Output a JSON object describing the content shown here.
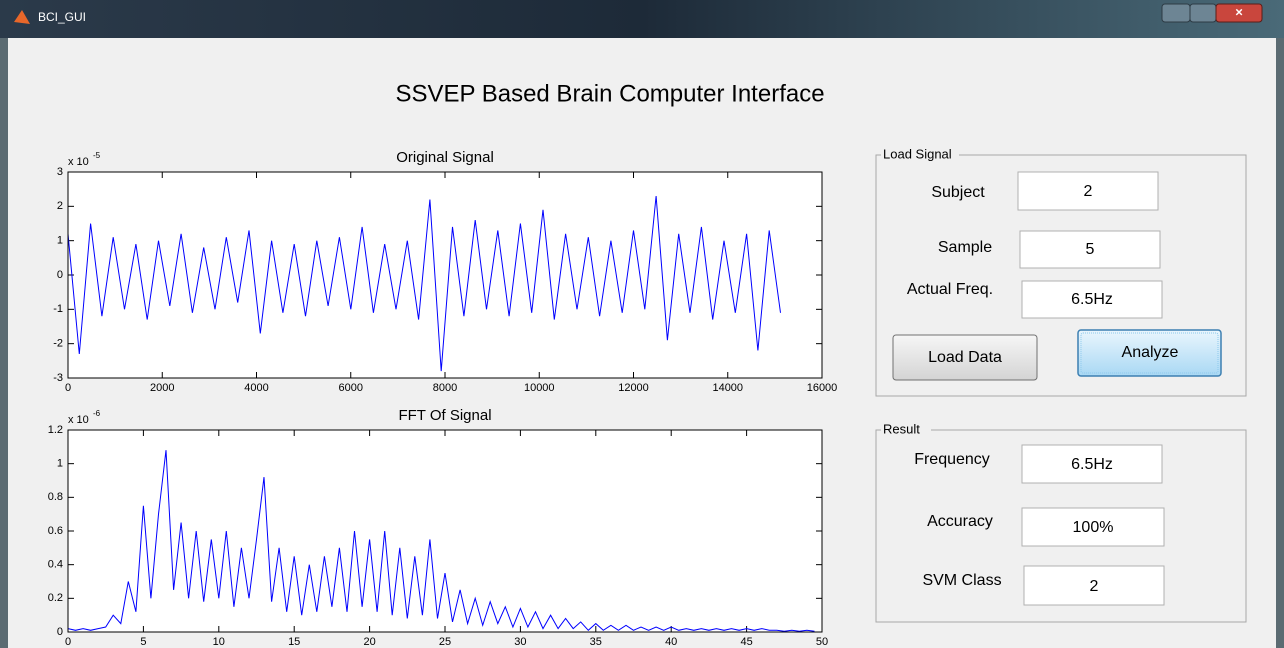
{
  "window": {
    "title": "BCI_GUI"
  },
  "heading": "SSVEP Based Brain Computer Interface",
  "chart_data": [
    {
      "type": "line",
      "title": "Original Signal",
      "y_scale": {
        "base": "x 10",
        "exponent": "-5"
      },
      "color": "#0000ff",
      "x": [
        0,
        240,
        480,
        720,
        960,
        1200,
        1440,
        1680,
        1920,
        2160,
        2400,
        2640,
        2880,
        3120,
        3360,
        3600,
        3840,
        4080,
        4320,
        4560,
        4800,
        5040,
        5280,
        5520,
        5760,
        6000,
        6240,
        6480,
        6720,
        6960,
        7200,
        7440,
        7680,
        7920,
        8160,
        8400,
        8640,
        8880,
        9120,
        9360,
        9600,
        9840,
        10080,
        10320,
        10560,
        10800,
        11040,
        11280,
        11520,
        11760,
        12000,
        12240,
        12480,
        12720,
        12960,
        13200,
        13440,
        13680,
        13920,
        14160,
        14400,
        14640,
        14880,
        15120
      ],
      "values": [
        1.2,
        -2.3,
        1.5,
        -1.2,
        1.1,
        -1.0,
        0.9,
        -1.3,
        1.0,
        -0.9,
        1.2,
        -1.1,
        0.8,
        -1.0,
        1.1,
        -0.8,
        1.3,
        -1.7,
        1.0,
        -1.1,
        0.9,
        -1.2,
        1.0,
        -0.9,
        1.1,
        -1.0,
        1.4,
        -1.1,
        0.9,
        -1.0,
        1.0,
        -1.3,
        2.2,
        -2.8,
        1.4,
        -1.2,
        1.6,
        -1.0,
        1.3,
        -1.2,
        1.5,
        -1.1,
        1.9,
        -1.3,
        1.2,
        -1.0,
        1.1,
        -1.2,
        1.0,
        -1.1,
        1.3,
        -1.0,
        2.3,
        -1.9,
        1.2,
        -1.1,
        1.4,
        -1.3,
        1.0,
        -1.1,
        1.2,
        -2.2,
        1.3,
        -1.1
      ],
      "xlim": [
        0,
        16000
      ],
      "xticks": [
        0,
        2000,
        4000,
        6000,
        8000,
        10000,
        12000,
        14000,
        16000
      ],
      "ylim": [
        -3,
        3
      ],
      "yticks": [
        -3,
        -2,
        -1,
        0,
        1,
        2,
        3
      ]
    },
    {
      "type": "line",
      "title": "FFT Of Signal",
      "y_scale": {
        "base": "x 10",
        "exponent": "-6"
      },
      "color": "#0000ff",
      "x": [
        0,
        0.5,
        1,
        1.5,
        2,
        2.5,
        3,
        3.5,
        4,
        4.5,
        5,
        5.5,
        6,
        6.5,
        7,
        7.5,
        8,
        8.5,
        9,
        9.5,
        10,
        10.5,
        11,
        11.5,
        12,
        12.5,
        13,
        13.5,
        14,
        14.5,
        15,
        15.5,
        16,
        16.5,
        17,
        17.5,
        18,
        18.5,
        19,
        19.5,
        20,
        20.5,
        21,
        21.5,
        22,
        22.5,
        23,
        23.5,
        24,
        24.5,
        25,
        25.5,
        26,
        26.5,
        27,
        27.5,
        28,
        28.5,
        29,
        29.5,
        30,
        30.5,
        31,
        31.5,
        32,
        32.5,
        33,
        33.5,
        34,
        34.5,
        35,
        35.5,
        36,
        36.5,
        37,
        37.5,
        38,
        38.5,
        39,
        39.5,
        40,
        40.5,
        41,
        41.5,
        42,
        42.5,
        43,
        43.5,
        44,
        44.5,
        45,
        45.5,
        46,
        46.5,
        47,
        47.5,
        48,
        48.5,
        49,
        49.5
      ],
      "values": [
        0.02,
        0.01,
        0.02,
        0.01,
        0.02,
        0.03,
        0.1,
        0.05,
        0.3,
        0.12,
        0.75,
        0.2,
        0.7,
        1.08,
        0.25,
        0.65,
        0.2,
        0.6,
        0.18,
        0.55,
        0.2,
        0.6,
        0.15,
        0.5,
        0.2,
        0.55,
        0.92,
        0.18,
        0.5,
        0.12,
        0.45,
        0.1,
        0.4,
        0.12,
        0.45,
        0.15,
        0.5,
        0.12,
        0.6,
        0.15,
        0.55,
        0.12,
        0.6,
        0.1,
        0.5,
        0.08,
        0.45,
        0.1,
        0.55,
        0.08,
        0.35,
        0.06,
        0.25,
        0.05,
        0.2,
        0.04,
        0.18,
        0.05,
        0.15,
        0.03,
        0.14,
        0.03,
        0.12,
        0.02,
        0.1,
        0.02,
        0.08,
        0.02,
        0.06,
        0.01,
        0.05,
        0.01,
        0.04,
        0.01,
        0.04,
        0.01,
        0.03,
        0.01,
        0.03,
        0.01,
        0.03,
        0.01,
        0.02,
        0.01,
        0.02,
        0.01,
        0.02,
        0.01,
        0.02,
        0.01,
        0.02,
        0.01,
        0.02,
        0.01,
        0.01,
        0.005,
        0.01,
        0.005,
        0.01,
        0.005
      ],
      "xlim": [
        0,
        50
      ],
      "xticks": [
        0,
        5,
        10,
        15,
        20,
        25,
        30,
        35,
        40,
        45,
        50
      ],
      "ylim": [
        0,
        1.2
      ],
      "yticks": [
        0,
        0.2,
        0.4,
        0.6,
        0.8,
        1,
        1.2
      ]
    }
  ],
  "load_signal": {
    "title": "Load Signal",
    "fields": [
      {
        "label": "Subject",
        "value": "2"
      },
      {
        "label": "Sample",
        "value": "5"
      },
      {
        "label": "Actual Freq.",
        "value": "6.5Hz"
      }
    ],
    "buttons": [
      "Load Data",
      "Analyze"
    ]
  },
  "result": {
    "title": "Result",
    "fields": [
      {
        "label": "Frequency",
        "value": "6.5Hz"
      },
      {
        "label": "Accuracy",
        "value": "100%"
      },
      {
        "label": "SVM Class",
        "value": "2"
      }
    ]
  }
}
